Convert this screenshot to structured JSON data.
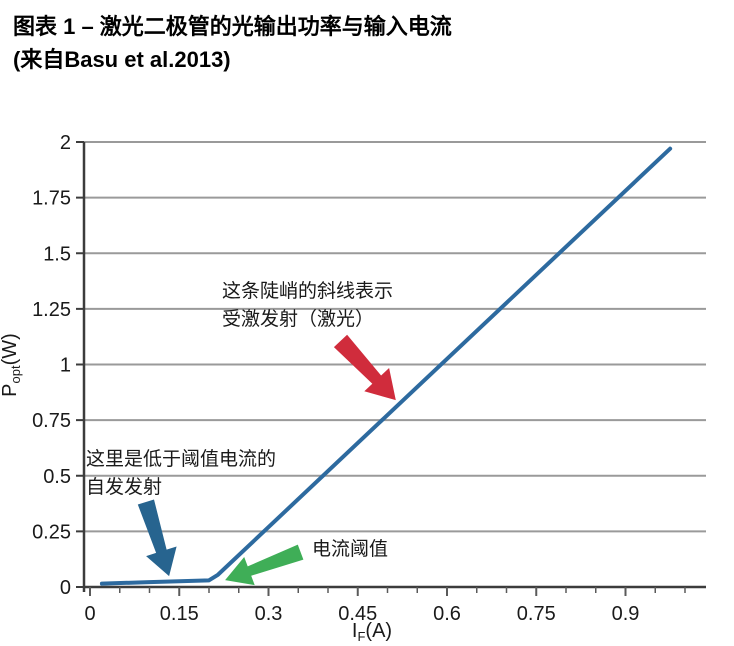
{
  "header": {
    "title_line1": "图表 1 – 激光二极管的光输出功率与输入电流",
    "title_line2": "(来自Basu et al.2013)"
  },
  "chart_data": {
    "type": "line",
    "title": "激光二极管的光输出功率与输入电流",
    "xlabel": {
      "pre": "I",
      "sub": "F",
      "post": "(A)"
    },
    "ylabel": {
      "pre": "P",
      "sub": "opt",
      "post": "(W)"
    },
    "xlim": [
      0,
      1.035
    ],
    "ylim": [
      0,
      2
    ],
    "x_major_ticks": [
      0,
      0.15,
      0.3,
      0.45,
      0.6,
      0.75,
      0.9
    ],
    "x_major_labels": [
      "0",
      "0.15",
      "0.3",
      "0.45",
      "0.6",
      "0.75",
      "0.9"
    ],
    "x_minor_step": 0.05,
    "x_minor_max": 1.0,
    "y_major_ticks": [
      0,
      0.25,
      0.5,
      0.75,
      1,
      1.25,
      1.5,
      1.75,
      2
    ],
    "y_major_labels": [
      "0",
      "0.25",
      "0.5",
      "0.75",
      "1",
      "1.25",
      "1.5",
      "1.75",
      "2"
    ],
    "grid": "horizontal-only",
    "legend": "none",
    "threshold_current_A": 0.2,
    "series": [
      {
        "name": "optical-output-power",
        "color": "#2d6a9f",
        "points": [
          [
            0.02,
            0.015
          ],
          [
            0.1,
            0.022
          ],
          [
            0.2,
            0.03
          ],
          [
            0.215,
            0.055
          ],
          [
            0.975,
            1.97
          ]
        ]
      }
    ]
  },
  "annotations": {
    "stimulated": {
      "line1": "这条陡峭的斜线表示",
      "line2": "受激发射（激光）",
      "arrow_color": "#d02c3c",
      "arrow_from": [
        0.421,
        1.106
      ],
      "arrow_to": [
        0.514,
        0.84
      ]
    },
    "spontaneous": {
      "line1": "这里是低于阈值电流的",
      "line2": "自发发射",
      "arrow_color": "#27648f",
      "arrow_from": [
        0.094,
        0.382
      ],
      "arrow_to": [
        0.133,
        0.049
      ]
    },
    "threshold": {
      "label": "电流阈值",
      "arrow_color": "#3fae57",
      "arrow_from": [
        0.354,
        0.157
      ],
      "arrow_to": [
        0.227,
        0.031
      ]
    }
  },
  "colors": {
    "line": "#2d6a9f",
    "grid": "#9a9a9a",
    "axis": "#3c3c3c",
    "tick": "#5a5a5a",
    "text": "#1a1a1a",
    "title": "#000000"
  }
}
